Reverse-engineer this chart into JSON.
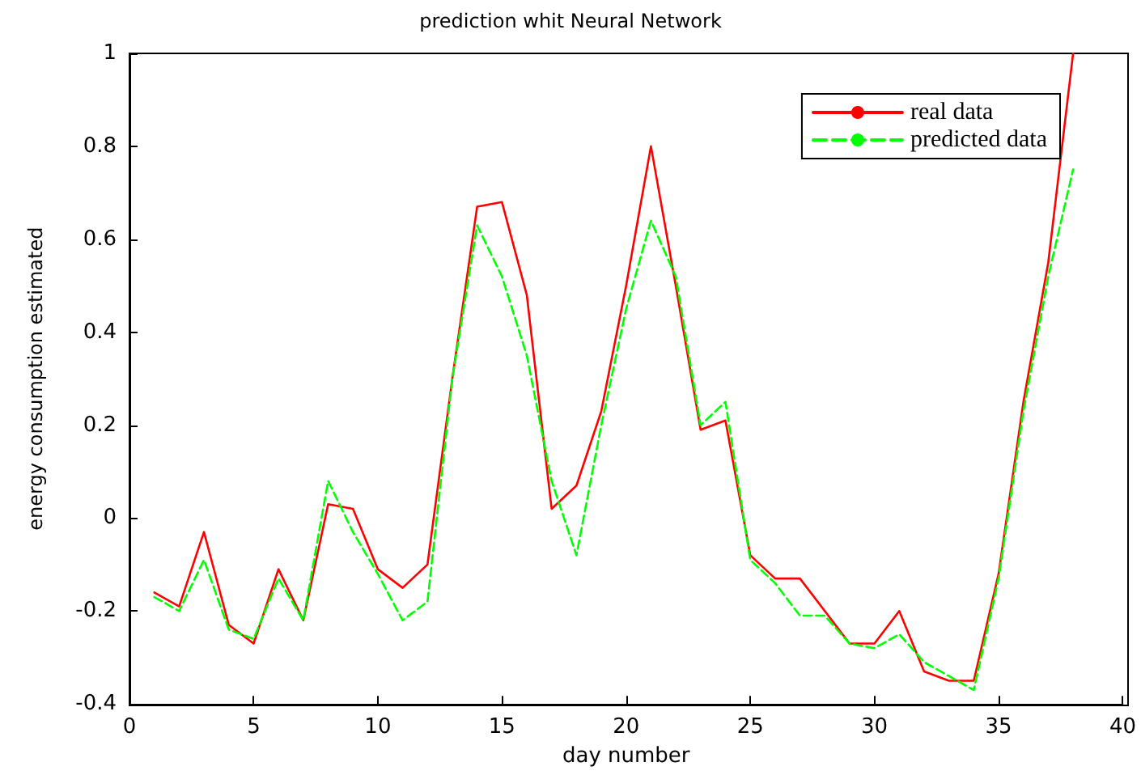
{
  "chart_data": {
    "type": "line",
    "title": "prediction whit Neural Network",
    "xlabel": "day number",
    "ylabel": "energy consumption estimated",
    "x": [
      1,
      2,
      3,
      4,
      5,
      6,
      7,
      8,
      9,
      10,
      11,
      12,
      13,
      14,
      15,
      16,
      17,
      18,
      19,
      20,
      21,
      22,
      23,
      24,
      25,
      26,
      27,
      28,
      29,
      30,
      31,
      32,
      33,
      34,
      35,
      36,
      37,
      38
    ],
    "series": [
      {
        "name": "real data",
        "color": "#ff0000",
        "line_style": "solid",
        "values": [
          -0.16,
          -0.19,
          -0.03,
          -0.23,
          -0.27,
          -0.11,
          -0.22,
          0.03,
          0.02,
          -0.11,
          -0.15,
          -0.1,
          0.3,
          0.67,
          0.68,
          0.48,
          0.02,
          0.07,
          0.23,
          0.5,
          0.8,
          0.5,
          0.19,
          0.21,
          -0.08,
          -0.13,
          -0.13,
          -0.2,
          -0.27,
          -0.27,
          -0.2,
          -0.33,
          -0.35,
          -0.35,
          -0.12,
          0.25,
          0.55,
          1.0
        ]
      },
      {
        "name": "predicted data",
        "color": "#00ff00",
        "line_style": "dashed",
        "values": [
          -0.17,
          -0.2,
          -0.09,
          -0.24,
          -0.26,
          -0.13,
          -0.22,
          0.08,
          -0.03,
          -0.12,
          -0.22,
          -0.18,
          0.3,
          0.63,
          0.52,
          0.35,
          0.08,
          -0.08,
          0.2,
          0.45,
          0.64,
          0.52,
          0.2,
          0.25,
          -0.09,
          -0.14,
          -0.21,
          -0.21,
          -0.27,
          -0.28,
          -0.25,
          -0.31,
          -0.34,
          -0.37,
          -0.13,
          0.23,
          0.52,
          0.75
        ]
      }
    ],
    "xlim": [
      0,
      40
    ],
    "xticks": [
      0,
      5,
      10,
      15,
      20,
      25,
      30,
      35,
      40
    ],
    "ylim": [
      -0.4,
      1
    ],
    "yticks": [
      -0.4,
      -0.2,
      0,
      0.2,
      0.4,
      0.6,
      0.8,
      1
    ],
    "grid": false,
    "legend": "top right",
    "marker": "none"
  }
}
